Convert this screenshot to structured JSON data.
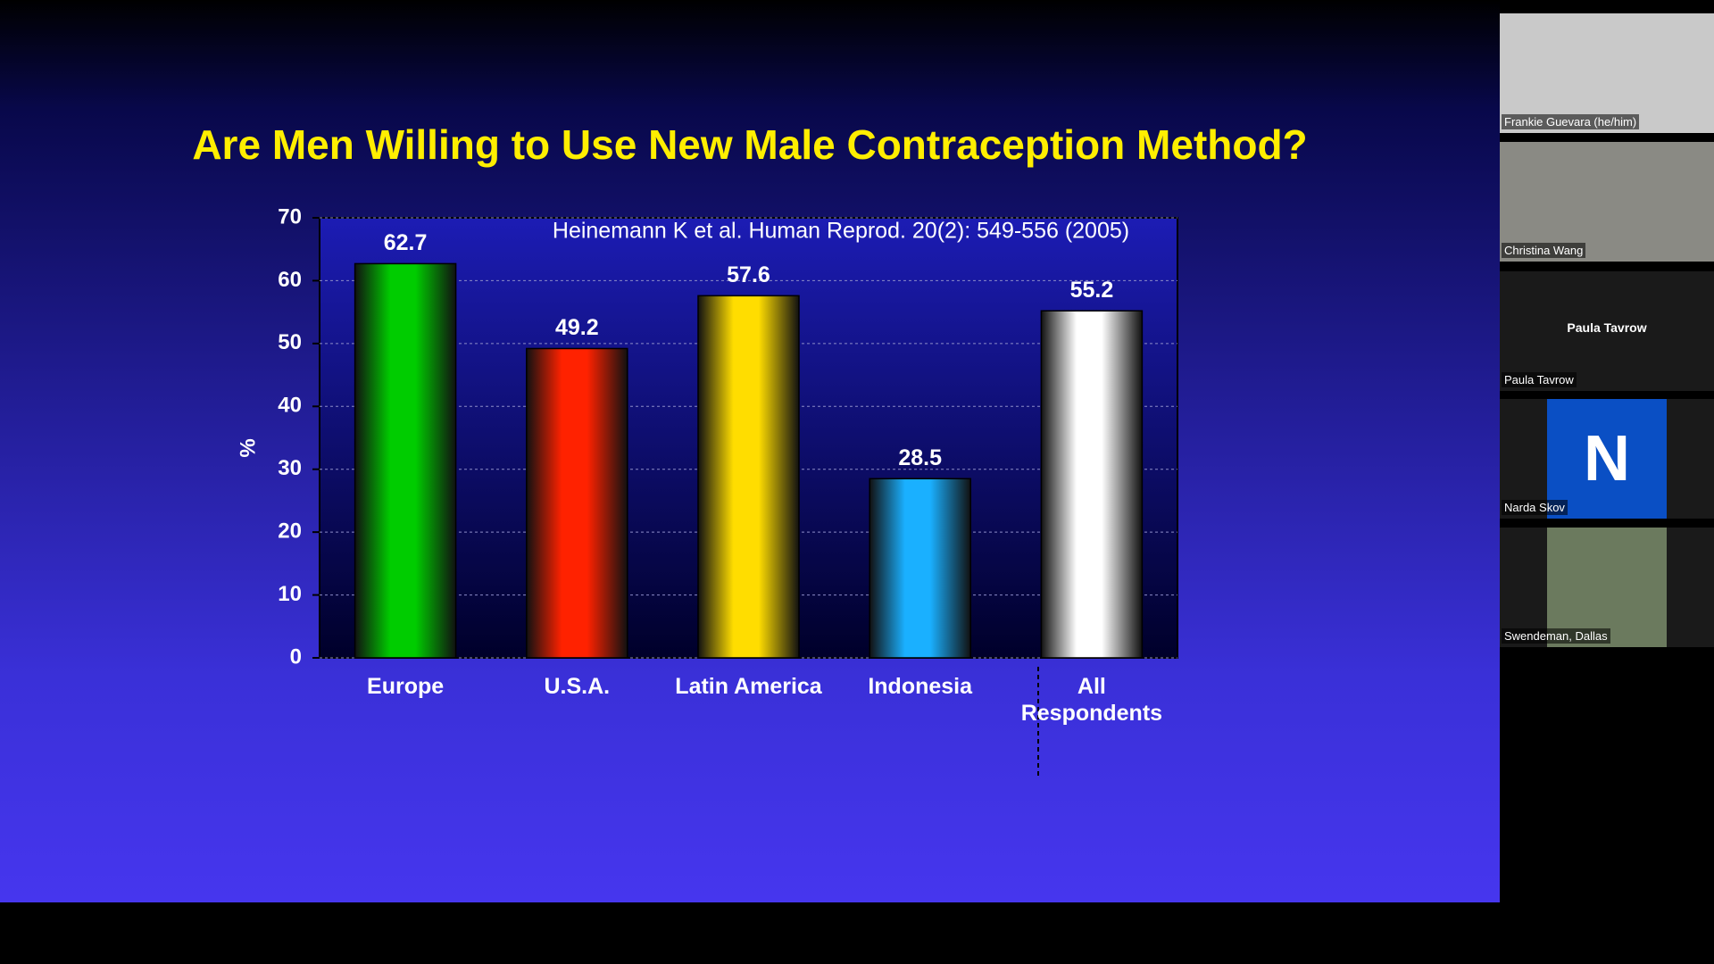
{
  "chart_data": {
    "type": "bar",
    "title": "Are Men Willing  to Use New Male Contraception Method?",
    "annotation": "Heinemann K et al. Human Reprod. 20(2): 549-556 (2005)",
    "y_label": "%",
    "categories": [
      "Europe",
      "U.S.A.",
      "Latin America",
      "Indonesia",
      "All Respondents"
    ],
    "values": [
      62.7,
      49.2,
      57.6,
      28.5,
      55.2
    ],
    "colors": [
      "#00cc00",
      "#ff2200",
      "#ffdd00",
      "#1ab0ff",
      "#ffffff"
    ],
    "ylim": [
      0,
      70
    ],
    "yticks": [
      0,
      10,
      20,
      30,
      40,
      50,
      60,
      70
    ],
    "grid": true
  },
  "participants": [
    {
      "name": "Frankie Guevara (he/him)",
      "tile": "#c9c9c9"
    },
    {
      "name": "Christina Wang",
      "tile": "#8a8a84"
    },
    {
      "name": "Paula Tavrow",
      "tile": "#1a1a1a",
      "center_label": "Paula Tavrow"
    },
    {
      "name": "Narda Skov",
      "tile": "#1a1a1a",
      "avatar": "N"
    },
    {
      "name": "Swendeman, Dallas",
      "tile": "#1a1a1a",
      "photo": "#6b7a5e"
    }
  ]
}
